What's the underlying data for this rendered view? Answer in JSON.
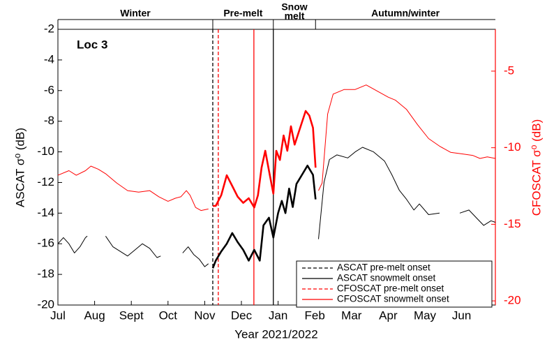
{
  "chart_data": {
    "type": "line",
    "annotation": "Loc 3",
    "x_label": "Year 2021/2022",
    "y_label": "ASCAT σ⁰ (dB)",
    "y2_label": "CFOSCAT σ⁰ (dB)",
    "xlim": [
      0,
      11.92
    ],
    "xticks": [
      {
        "value": 0,
        "label": "Jul"
      },
      {
        "value": 1,
        "label": "Aug"
      },
      {
        "value": 2,
        "label": "Sept"
      },
      {
        "value": 3,
        "label": "Oct"
      },
      {
        "value": 4,
        "label": "Nov"
      },
      {
        "value": 5,
        "label": "Dec"
      },
      {
        "value": 6,
        "label": "Jan"
      },
      {
        "value": 7,
        "label": "Feb"
      },
      {
        "value": 8,
        "label": "Mar"
      },
      {
        "value": 9,
        "label": "Apr"
      },
      {
        "value": 10,
        "label": "May"
      },
      {
        "value": 11,
        "label": "Jun"
      }
    ],
    "ylim": [
      -20,
      -2
    ],
    "yticks": [
      -20,
      -18,
      -16,
      -14,
      -12,
      -10,
      -8,
      -6,
      -4,
      -2
    ],
    "y2lim": [
      -20.27,
      -2.27
    ],
    "y2ticks": [
      -20,
      -15,
      -10,
      -5
    ],
    "thick_range": [
      4.22,
      7.02
    ],
    "phases": [
      {
        "label": [
          "Winter"
        ],
        "start": 0,
        "end": 4.22
      },
      {
        "label": [
          "Pre-melt"
        ],
        "start": 4.22,
        "end": 5.87
      },
      {
        "label": [
          "Snow",
          "melt"
        ],
        "start": 5.87,
        "end": 7.02
      },
      {
        "label": [
          "Autumn/winter"
        ],
        "start": 7.02,
        "end": 11.92
      }
    ],
    "events": [
      {
        "name": "ASCAT pre-melt onset",
        "x": 4.22,
        "color": "#000000",
        "dashed": true
      },
      {
        "name": "ASCAT snowmelt onset",
        "x": 5.87,
        "color": "#000000",
        "dashed": false
      },
      {
        "name": "CFOSCAT pre-melt onset",
        "x": 4.37,
        "color": "#ff0000",
        "dashed": true
      },
      {
        "name": "CFOSCAT snowmelt onset",
        "x": 5.34,
        "color": "#ff0000",
        "dashed": false
      }
    ],
    "series": [
      {
        "name": "ASCAT",
        "color": "#000000",
        "axis": "y",
        "x": [
          0,
          0.15,
          0.3,
          0.45,
          0.6,
          0.75,
          0.8,
          1.05,
          1.3,
          1.5,
          1.7,
          1.9,
          2.1,
          2.3,
          2.5,
          2.7,
          2.8,
          3.1,
          3.4,
          3.55,
          3.7,
          3.85,
          4.0,
          4.1,
          4.22,
          4.3,
          4.45,
          4.6,
          4.75,
          4.9,
          5.05,
          5.2,
          5.35,
          5.5,
          5.6,
          5.75,
          5.87,
          6.0,
          6.1,
          6.2,
          6.3,
          6.4,
          6.5,
          6.65,
          6.8,
          6.95,
          7.02,
          7.1,
          7.25,
          7.4,
          7.6,
          7.9,
          8.1,
          8.3,
          8.6,
          8.9,
          9.1,
          9.3,
          9.5,
          9.7,
          9.85,
          10.1,
          10.4,
          10.7,
          10.95,
          11.2,
          11.4,
          11.6,
          11.8,
          11.92
        ],
        "values": [
          -16.0,
          -15.6,
          -16.0,
          -16.6,
          -16.2,
          -15.6,
          -15.5,
          null,
          -15.5,
          -16.2,
          -16.5,
          -16.8,
          -16.4,
          -16.0,
          -16.3,
          -16.9,
          -16.8,
          null,
          -16.6,
          -16.2,
          -16.7,
          -17.0,
          -17.5,
          -17.3,
          -17.6,
          -17.1,
          -16.5,
          -16.0,
          -15.3,
          -15.9,
          -16.4,
          -17.1,
          -16.4,
          -17.1,
          -14.8,
          -14.3,
          -15.6,
          -14.0,
          -13.2,
          -14.0,
          -12.4,
          -13.6,
          -12.1,
          -11.5,
          -10.9,
          -11.5,
          -13.1,
          -15.7,
          -12.0,
          -10.5,
          -10.2,
          -10.4,
          -10.0,
          -9.7,
          -10.0,
          -10.6,
          -11.5,
          -12.5,
          -13.1,
          -13.8,
          -13.4,
          -14.1,
          -14.0,
          null,
          -14.0,
          -13.8,
          -14.3,
          -14.8,
          -14.5,
          -14.6
        ]
      },
      {
        "name": "CFOSCAT",
        "color": "#ff0000",
        "axis": "y2",
        "x": [
          0,
          0.3,
          0.5,
          0.75,
          0.9,
          1.1,
          1.3,
          1.6,
          1.9,
          2.2,
          2.5,
          2.75,
          3.0,
          3.2,
          3.35,
          3.5,
          3.6,
          3.75,
          3.9,
          4.1,
          4.22,
          4.3,
          4.45,
          4.6,
          4.75,
          4.9,
          5.05,
          5.2,
          5.35,
          5.45,
          5.55,
          5.65,
          5.75,
          5.87,
          5.95,
          6.05,
          6.15,
          6.25,
          6.35,
          6.45,
          6.6,
          6.75,
          6.85,
          6.95,
          7.02,
          7.1,
          7.2,
          7.35,
          7.5,
          7.8,
          8.1,
          8.4,
          8.7,
          9.0,
          9.2,
          9.5,
          9.8,
          10.1,
          10.4,
          10.7,
          11.0,
          11.3,
          11.5,
          11.7,
          11.92
        ],
        "values": [
          -11.8,
          -11.5,
          -11.8,
          -11.5,
          -11.2,
          -11.4,
          -11.7,
          -12.3,
          -12.8,
          -12.9,
          -12.8,
          -13.2,
          -13.5,
          -13.3,
          -13.2,
          -12.8,
          -13.1,
          -13.9,
          -14.1,
          -14.0,
          -13.8,
          -13.8,
          -13.1,
          -11.8,
          -12.5,
          -13.2,
          -13.6,
          -13.3,
          -13.9,
          -13.1,
          -11.3,
          -10.2,
          -11.5,
          -13.0,
          -10.2,
          -10.8,
          -9.2,
          -10.2,
          -8.6,
          -9.8,
          -8.7,
          -7.6,
          -7.9,
          -8.7,
          -11.3,
          -12.8,
          -12.3,
          -7.8,
          -6.5,
          -6.2,
          -6.2,
          -5.9,
          -6.3,
          -6.7,
          -6.9,
          -7.5,
          -8.5,
          -9.4,
          -9.9,
          -10.3,
          -10.4,
          -10.5,
          -10.7,
          -10.6,
          -10.7
        ]
      }
    ]
  }
}
